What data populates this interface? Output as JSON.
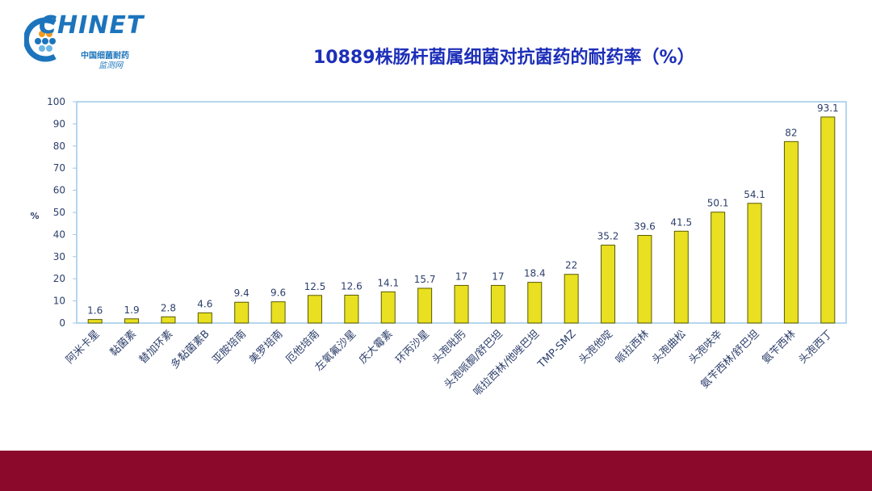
{
  "logo": {
    "mark": "CHINET",
    "sub1": "中国细菌耐药",
    "sub2": "监测网"
  },
  "colors": {
    "bar_fill": "#e8e020",
    "bar_stroke": "#5a5a00",
    "axis_text": "#2c3e6a",
    "plot_border": "#9ec9e8",
    "title": "#1d2fb8",
    "footer": "#8b0a2c"
  },
  "chart_data": {
    "type": "bar",
    "title": "10889株肠杆菌属细菌对抗菌药的耐药率（%）",
    "ylabel": "%",
    "xlabel": "",
    "ylim": [
      0,
      100
    ],
    "yticks": [
      0,
      10,
      20,
      30,
      40,
      50,
      60,
      70,
      80,
      90,
      100
    ],
    "grid": false,
    "categories": [
      "阿米卡星",
      "黏菌素",
      "替加环素",
      "多黏菌素B",
      "亚胺培南",
      "美罗培南",
      "厄他培南",
      "左氧氟沙星",
      "庆大霉素",
      "环丙沙星",
      "头孢吡肟",
      "头孢哌酮/舒巴坦",
      "哌拉西林/他唑巴坦",
      "TMP-SMZ",
      "头孢他啶",
      "哌拉西林",
      "头孢曲松",
      "头孢呋辛",
      "氨苄西林/舒巴坦",
      "氨苄西林",
      "头孢西丁"
    ],
    "values": [
      1.6,
      1.9,
      2.8,
      4.6,
      9.4,
      9.6,
      12.5,
      12.6,
      14.1,
      15.7,
      17,
      17,
      18.4,
      22,
      35.2,
      39.6,
      41.5,
      50.1,
      54.1,
      82,
      93.1
    ],
    "value_labels": [
      "1.6",
      "1.9",
      "2.8",
      "4.6",
      "9.4",
      "9.6",
      "12.5",
      "12.6",
      "14.1",
      "15.7",
      "17",
      "17",
      "18.4",
      "22",
      "35.2",
      "39.6",
      "41.5",
      "50.1",
      "54.1",
      "82",
      "93.1"
    ]
  }
}
